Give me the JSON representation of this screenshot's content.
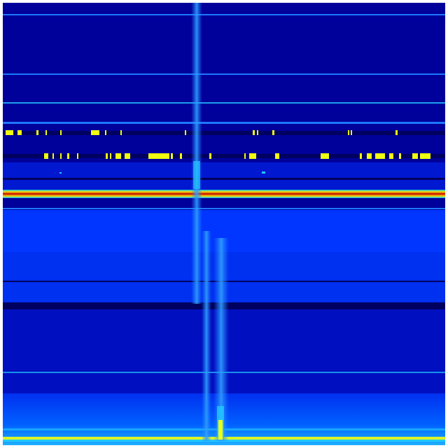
{
  "colormap": {
    "background_deep": "#00009a",
    "background_mid": "#0020e0",
    "background_bright": "#0036ff",
    "line_light": "#1e78ff",
    "cyan": "#22c8ff",
    "yellow": "#f0ff10",
    "red": "#d00000",
    "dark_line": "#000060"
  }
}
